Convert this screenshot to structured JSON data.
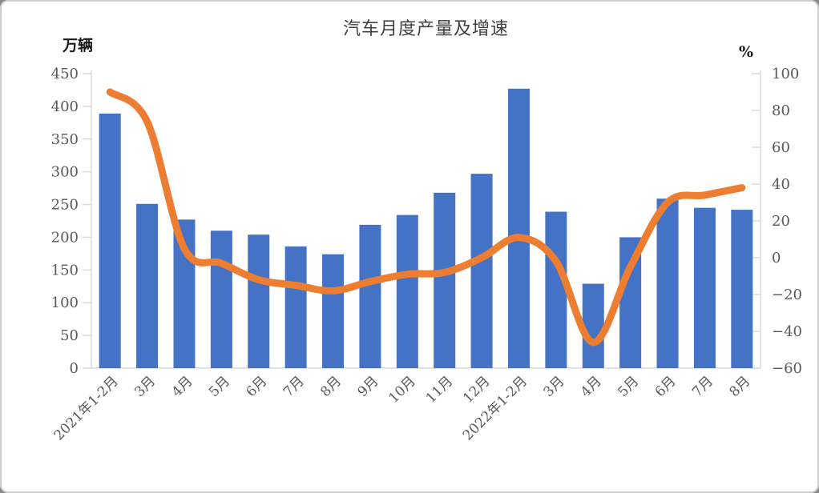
{
  "chart_data": {
    "type": "combo_bar_line",
    "title": "汽车月度产量及增速",
    "categories": [
      "2021年1-2月",
      "3月",
      "4月",
      "5月",
      "6月",
      "7月",
      "8月",
      "9月",
      "10月",
      "11月",
      "12月",
      "2022年1-2月",
      "3月",
      "4月",
      "5月",
      "6月",
      "7月",
      "8月"
    ],
    "series": [
      {
        "name": "月度产量",
        "type": "bar",
        "axis": "left",
        "unit": "万辆",
        "color": "#4472C4",
        "values": [
          389,
          251,
          227,
          210,
          204,
          186,
          174,
          219,
          234,
          268,
          297,
          427,
          239,
          129,
          200,
          259,
          245,
          242
        ]
      },
      {
        "name": "增速",
        "type": "line",
        "axis": "right",
        "unit": "%",
        "color": "#ED7D31",
        "values": [
          90,
          74,
          5,
          -3,
          -12,
          -15,
          -18,
          -13,
          -9,
          -8,
          0,
          11,
          -2,
          -46,
          -5,
          30,
          34,
          38
        ]
      }
    ],
    "left_axis": {
      "unit": "万辆",
      "min": 0,
      "max": 450,
      "step": 50,
      "tick_labels": [
        "0",
        "50",
        "100",
        "150",
        "200",
        "250",
        "300",
        "350",
        "400",
        "450"
      ]
    },
    "right_axis": {
      "unit": "%",
      "min": -60,
      "max": 100,
      "step": 20,
      "tick_labels": [
        "−60",
        "−40",
        "−20",
        "0",
        "20",
        "40",
        "60",
        "80",
        "100"
      ]
    },
    "legend": "none",
    "gridlines": "none",
    "axis_color": "#d9d9d9",
    "tick_label_color": "#595959",
    "title_color": "#3f3f3f"
  }
}
